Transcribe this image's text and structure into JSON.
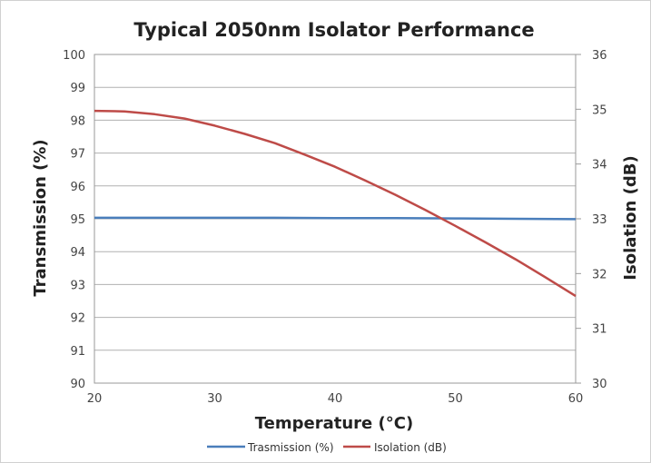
{
  "chart_data": {
    "type": "line",
    "title": "Typical 2050nm Isolator Performance",
    "xlabel": "Temperature (°C)",
    "ylabel": "Transmission (%)",
    "y2label": "Isolation (dB)",
    "xlim": [
      20,
      60
    ],
    "ylim": [
      90,
      100
    ],
    "y2lim": [
      30,
      36
    ],
    "x_ticks": [
      "20",
      "30",
      "40",
      "50",
      "60"
    ],
    "y_ticks": [
      "90",
      "91",
      "92",
      "93",
      "94",
      "95",
      "96",
      "97",
      "98",
      "99",
      "100"
    ],
    "y2_ticks": [
      "30",
      "31",
      "32",
      "33",
      "34",
      "35",
      "36"
    ],
    "grid": true,
    "legend_position": "bottom",
    "series": [
      {
        "name": "Trasmission (%)",
        "axis": "left",
        "color": "#4a7ebb",
        "x": [
          20,
          25,
          30,
          35,
          40,
          45,
          50,
          55,
          60
        ],
        "y": [
          95.03,
          95.03,
          95.03,
          95.03,
          95.02,
          95.02,
          95.01,
          95.0,
          94.99
        ]
      },
      {
        "name": "Isolation (dB)",
        "axis": "right",
        "color": "#be4b48",
        "x": [
          20,
          22.5,
          25,
          27.5,
          30,
          32.5,
          35,
          37.5,
          40,
          42.5,
          45,
          47.5,
          50,
          52.5,
          55,
          57.5,
          60
        ],
        "y": [
          34.97,
          34.96,
          34.91,
          34.83,
          34.7,
          34.55,
          34.38,
          34.17,
          33.95,
          33.7,
          33.44,
          33.16,
          32.87,
          32.57,
          32.26,
          31.93,
          31.59
        ]
      }
    ]
  }
}
